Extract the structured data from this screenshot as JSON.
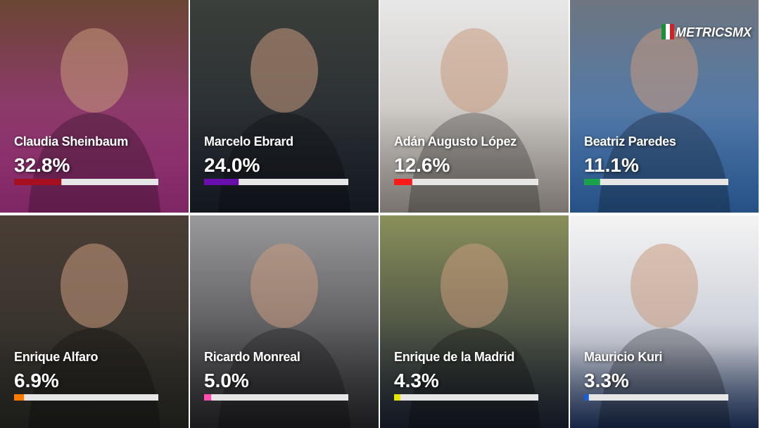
{
  "chart_data": {
    "type": "bar",
    "logo": "METRICSMX",
    "categories": [
      "Claudia Sheinbaum",
      "Marcelo Ebrard",
      "Adán Augusto López",
      "Beatriz Paredes",
      "Enrique Alfaro",
      "Ricardo Monreal",
      "Enrique de la Madrid",
      "Mauricio Kuri"
    ],
    "values": [
      32.8,
      24.0,
      12.6,
      11.1,
      6.9,
      5.0,
      4.3,
      3.3
    ],
    "value_labels": [
      "32.8%",
      "24.0%",
      "12.6%",
      "11.1%",
      "6.9%",
      "5.0%",
      "4.3%",
      "3.3%"
    ],
    "colors": [
      "#a50f1f",
      "#6a0dad",
      "#ff1a1a",
      "#1aa34a",
      "#ff7a00",
      "#ff4fb0",
      "#e6e600",
      "#1a5fd6"
    ],
    "xlim": [
      0,
      100
    ]
  }
}
